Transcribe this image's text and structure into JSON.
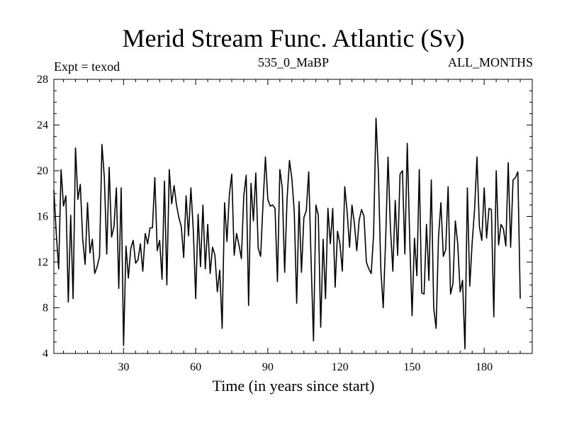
{
  "chart_data": {
    "type": "line",
    "title": "Merid Stream Func. Atlantic (Sv)",
    "subtitle_left": "Expt = texod",
    "subtitle_center": "535_0_MaBP",
    "subtitle_right": "ALL_MONTHS",
    "xlabel": "Time (in years since start)",
    "ylabel": "",
    "xlim": [
      1,
      200
    ],
    "ylim": [
      4,
      28
    ],
    "xticks": [
      30,
      60,
      90,
      120,
      150,
      180
    ],
    "xtick_labels": [
      "30",
      "60",
      "90",
      "120",
      "150",
      "180"
    ],
    "yticks": [
      4,
      8,
      12,
      16,
      20,
      24,
      28
    ],
    "ytick_labels": [
      "4",
      "8",
      "12",
      "16",
      "20",
      "24",
      "28"
    ],
    "grid": false,
    "series": [
      {
        "name": "Merid Stream Func. Atlantic",
        "x_start": 1,
        "x_step": 1,
        "values": [
          18.3,
          14.5,
          11.4,
          20.1,
          16.9,
          17.8,
          8.5,
          16.1,
          8.8,
          22.0,
          17.5,
          18.8,
          14.0,
          11.8,
          17.2,
          12.8,
          14.0,
          11.0,
          11.6,
          12.5,
          22.3,
          19.4,
          12.7,
          20.3,
          14.2,
          15.1,
          18.5,
          9.7,
          18.5,
          4.7,
          13.4,
          10.6,
          13.2,
          13.9,
          11.9,
          12.2,
          13.6,
          11.2,
          14.5,
          13.6,
          15.0,
          15.0,
          19.4,
          13.0,
          13.9,
          10.5,
          19.1,
          10.0,
          20.1,
          17.1,
          18.7,
          17.0,
          15.9,
          15.1,
          12.4,
          17.8,
          14.3,
          18.5,
          14.8,
          8.8,
          16.2,
          11.6,
          17.0,
          11.4,
          15.3,
          11.0,
          13.3,
          12.6,
          9.4,
          11.3,
          6.2,
          17.2,
          13.8,
          17.9,
          19.7,
          12.6,
          14.5,
          13.5,
          12.3,
          17.8,
          19.6,
          8.2,
          18.9,
          15.6,
          19.8,
          13.2,
          12.5,
          17.1,
          21.2,
          17.5,
          16.9,
          17.0,
          16.7,
          10.3,
          20.1,
          18.5,
          11.1,
          17.5,
          20.9,
          19.3,
          16.4,
          8.4,
          17.3,
          11.1,
          15.9,
          16.5,
          19.9,
          12.1,
          5.1,
          17.0,
          16.1,
          6.3,
          14.0,
          8.8,
          16.7,
          13.6,
          16.7,
          9.8,
          14.7,
          13.6,
          11.2,
          18.6,
          16.4,
          13.3,
          17.0,
          15.4,
          13.0,
          15.7,
          16.6,
          16.0,
          12.0,
          11.4,
          11.0,
          14.4,
          24.6,
          19.8,
          11.4,
          8.0,
          13.9,
          21.2,
          15.0,
          11.2,
          17.4,
          12.6,
          19.7,
          20.0,
          12.7,
          22.4,
          14.2,
          7.3,
          14.1,
          10.8,
          20.1,
          9.3,
          9.2,
          15.3,
          10.4,
          19.2,
          8.0,
          6.2,
          14.2,
          17.2,
          12.5,
          13.1,
          18.6,
          9.2,
          10.1,
          15.6,
          13.6,
          9.4,
          10.4,
          4.4,
          18.5,
          9.9,
          13.7,
          16.6,
          21.2,
          15.1,
          13.9,
          18.5,
          14.1,
          16.7,
          16.6,
          7.2,
          20.0,
          13.5,
          15.3,
          14.9,
          13.4,
          20.7,
          13.3,
          19.2,
          19.4,
          19.9,
          8.8
        ]
      }
    ]
  }
}
